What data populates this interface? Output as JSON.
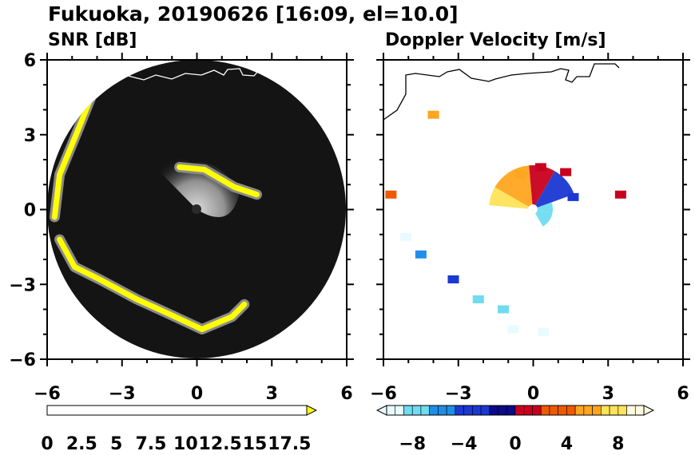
{
  "figure": {
    "title": "Fukuoka, 20190626 [16:09, el=10.0]"
  },
  "chart_data": [
    {
      "type": "heatmap",
      "panel": "left",
      "title": "SNR [dB]",
      "xlim": [
        -6,
        6
      ],
      "ylim": [
        -6,
        6
      ],
      "x_ticks": [
        "−6",
        "−3",
        "0",
        "3",
        "6"
      ],
      "y_ticks": [
        "6",
        "3",
        "0",
        "−3",
        "−6"
      ],
      "radar_range": 6,
      "colorbar": {
        "min": 0,
        "max": 18.75,
        "step": 1.25,
        "labels": [
          "0",
          "2.5",
          "5",
          "7.5",
          "10",
          "12.5",
          "15",
          "17.5"
        ],
        "extend": "max",
        "colors": [
          "#000000",
          "#ffff00"
        ]
      },
      "echo_bands": [
        {
          "name": "near-field",
          "points": [
            [
              -0.7,
              1.7
            ],
            [
              0.3,
              1.6
            ],
            [
              1.5,
              0.9
            ],
            [
              2.4,
              0.6
            ]
          ]
        },
        {
          "name": "west-arc",
          "points": [
            [
              -4.2,
              4.6
            ],
            [
              -4.8,
              3.1
            ],
            [
              -5.5,
              1.4
            ],
            [
              -5.7,
              -0.3
            ]
          ]
        },
        {
          "name": "south-arc",
          "points": [
            [
              -5.5,
              -1.2
            ],
            [
              -4.9,
              -2.3
            ],
            [
              -3.9,
              -2.8
            ],
            [
              -2.4,
              -3.6
            ],
            [
              -1.3,
              -4.1
            ],
            [
              0.2,
              -4.8
            ],
            [
              1.4,
              -4.3
            ],
            [
              1.9,
              -3.8
            ]
          ]
        }
      ]
    },
    {
      "type": "heatmap",
      "panel": "right",
      "title": "Doppler Velocity [m/s]",
      "xlim": [
        -6,
        6
      ],
      "ylim": [
        -6,
        6
      ],
      "x_ticks": [
        "−6",
        "−3",
        "0",
        "3",
        "6"
      ],
      "y_ticks": [
        "6",
        "3",
        "0",
        "−3",
        "−6"
      ],
      "colorbar": {
        "min": -10,
        "max": 10,
        "step": 0.667,
        "labels": [
          "−8",
          "−4",
          "0",
          "4",
          "8"
        ],
        "extend": "both",
        "colors": [
          "#e8fbff",
          "#6fdcef",
          "#1f8ee8",
          "#1a38d2",
          "#0a0a8a",
          "#c8001e",
          "#ee5a00",
          "#ffa51f",
          "#ffe35a",
          "#fffae0"
        ]
      },
      "echo_cells": [
        {
          "x": -4.0,
          "y": 3.8,
          "v": 6.5
        },
        {
          "x": -5.7,
          "y": 0.6,
          "v": 3.5
        },
        {
          "x": -5.1,
          "y": -1.1,
          "v": -9.0
        },
        {
          "x": -4.5,
          "y": -1.8,
          "v": -5.5
        },
        {
          "x": -3.2,
          "y": -2.8,
          "v": -4.0
        },
        {
          "x": -2.2,
          "y": -3.6,
          "v": -7.8
        },
        {
          "x": -1.2,
          "y": -4.0,
          "v": -8.6
        },
        {
          "x": -0.8,
          "y": -4.8,
          "v": -9.5
        },
        {
          "x": 0.4,
          "y": -4.9,
          "v": -9.7
        },
        {
          "x": 1.3,
          "y": 1.5,
          "v": 2.0
        },
        {
          "x": 1.6,
          "y": 0.5,
          "v": -3.5
        },
        {
          "x": -0.5,
          "y": 1.4,
          "v": 6.0
        },
        {
          "x": 0.3,
          "y": 1.7,
          "v": 1.0
        },
        {
          "x": 3.5,
          "y": 0.6,
          "v": 1.0
        }
      ]
    }
  ],
  "colors": {
    "scope_background": "#141414",
    "coastline": "#ffffff",
    "coastline_right": "#000000"
  }
}
